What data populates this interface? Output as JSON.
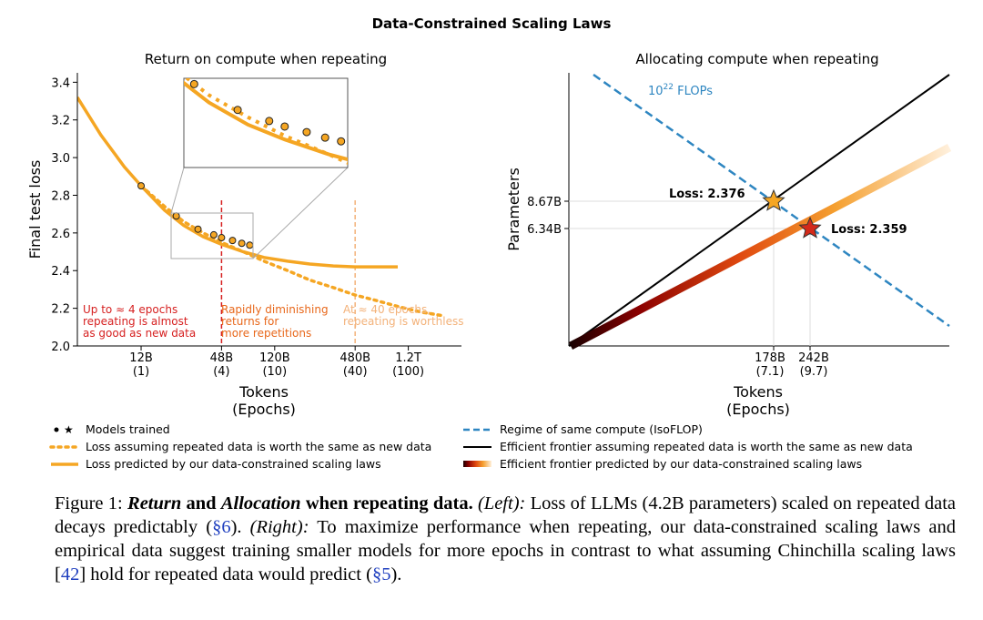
{
  "figure": {
    "suptitle": "Data-Constrained Scaling Laws"
  },
  "chart_data": [
    {
      "type": "line",
      "title": "Return on compute when repeating",
      "xlabel": "Tokens",
      "xlabel2": "(Epochs)",
      "ylabel": "Final test loss",
      "xscale": "log",
      "ylim": [
        2.0,
        3.45
      ],
      "xticks": [
        {
          "x": 12000000000.0,
          "label": "12B",
          "epochs": "(1)"
        },
        {
          "x": 48000000000.0,
          "label": "48B",
          "epochs": "(4)"
        },
        {
          "x": 120000000000.0,
          "label": "120B",
          "epochs": "(10)"
        },
        {
          "x": 480000000000.0,
          "label": "480B",
          "epochs": "(40)"
        },
        {
          "x": 1200000000000.0,
          "label": "1.2T",
          "epochs": "(100)"
        }
      ],
      "yticks": [
        "2.0",
        "2.2",
        "2.4",
        "2.6",
        "2.8",
        "3.0",
        "3.2",
        "3.4"
      ],
      "yticks_values": [
        2.0,
        2.2,
        2.4,
        2.6,
        2.8,
        3.0,
        3.2,
        3.4
      ],
      "series": [
        {
          "name": "Loss predicted by our data-constrained scaling laws",
          "style": "solid",
          "color": "#f5a623",
          "x": [
            4000000000.0,
            6000000000.0,
            9000000000.0,
            12000000000.0,
            18000000000.0,
            25000000000.0,
            35000000000.0,
            48000000000.0,
            70000000000.0,
            100000000000.0,
            150000000000.0,
            220000000000.0,
            330000000000.0,
            480000000000.0,
            700000000000.0,
            1000000000000.0
          ],
          "y": [
            3.32,
            3.12,
            2.95,
            2.85,
            2.72,
            2.64,
            2.58,
            2.54,
            2.5,
            2.47,
            2.45,
            2.435,
            2.425,
            2.42,
            2.42,
            2.42
          ]
        },
        {
          "name": "Loss assuming repeated data is worth the same as new data",
          "style": "dotted",
          "color": "#f5a623",
          "x": [
            12000000000.0,
            18000000000.0,
            25000000000.0,
            35000000000.0,
            48000000000.0,
            70000000000.0,
            100000000000.0,
            150000000000.0,
            220000000000.0,
            330000000000.0,
            480000000000.0,
            700000000000.0,
            1000000000000.0,
            1500000000000.0,
            2200000000000.0
          ],
          "y": [
            2.85,
            2.74,
            2.66,
            2.6,
            2.55,
            2.5,
            2.45,
            2.4,
            2.35,
            2.31,
            2.27,
            2.24,
            2.21,
            2.18,
            2.16
          ]
        }
      ],
      "models_trained": {
        "x": [
          12000000000.0,
          22000000000.0,
          32000000000.0,
          42000000000.0,
          48000000000.0,
          58000000000.0,
          68000000000.0,
          78000000000.0
        ],
        "y": [
          2.85,
          2.69,
          2.62,
          2.59,
          2.575,
          2.56,
          2.545,
          2.535
        ]
      },
      "vlines": [
        {
          "x": 48000000000.0,
          "color": "#d62020"
        },
        {
          "x": 480000000000.0,
          "color": "#f3b27a"
        }
      ],
      "annotations": [
        {
          "lines": [
            "Up to ≈ 4 epochs",
            "repeating is almost",
            "as good as new data"
          ],
          "color": "#d62020"
        },
        {
          "lines": [
            "Rapidly diminishing",
            "returns for",
            "more repetitions"
          ],
          "color": "#e8671a"
        },
        {
          "lines": [
            "At ≈ 40 epochs,",
            "repeating is worthless"
          ],
          "color": "#f3b27a"
        }
      ]
    },
    {
      "type": "line",
      "title": "Allocating compute when repeating",
      "xlabel": "Tokens",
      "xlabel2": "(Epochs)",
      "ylabel": "Parameters",
      "isoflop_label": "10",
      "isoflop_sup": "22",
      "isoflop_suffix": " FLOPs",
      "xticks": [
        {
          "label": "178B",
          "epochs": "(7.1)"
        },
        {
          "label": "242B",
          "epochs": "(9.7)"
        }
      ],
      "yticks": [
        {
          "label": "8.67B"
        },
        {
          "label": "6.34B"
        }
      ],
      "points": [
        {
          "label": "Loss: 2.376",
          "tokens": "178B",
          "params": "8.67B",
          "marker": "star",
          "color": "#f5a623"
        },
        {
          "label": "Loss: 2.359",
          "tokens": "242B",
          "params": "6.34B",
          "marker": "star",
          "color": "#d42a1a"
        }
      ],
      "series": [
        {
          "name": "Regime of same compute (IsoFLOP)",
          "style": "dashed",
          "color": "#2e86c1"
        },
        {
          "name": "Efficient frontier assuming repeated data is worth the same as new data",
          "style": "solid",
          "color": "#000000"
        },
        {
          "name": "Efficient frontier predicted by our data-constrained scaling laws",
          "style": "gradient",
          "color": "#e8671a"
        }
      ]
    }
  ],
  "legend": {
    "left": [
      {
        "label": "Models trained",
        "marker": "dot-star"
      },
      {
        "label": "Loss assuming repeated data is worth the same as new data",
        "marker": "dotted-orange"
      },
      {
        "label": "Loss predicted by our data-constrained scaling laws",
        "marker": "solid-orange"
      }
    ],
    "right": [
      {
        "label": "Regime of same compute (IsoFLOP)",
        "marker": "dashed-blue"
      },
      {
        "label": "Efficient frontier assuming repeated data is worth the same as new data",
        "marker": "solid-black"
      },
      {
        "label": "Efficient frontier predicted by our data-constrained scaling laws",
        "marker": "gradient"
      }
    ]
  },
  "caption": {
    "lead": "Figure 1: ",
    "bold1": "Return",
    "and1": " and ",
    "bold2": "Allocation",
    "bold3": " when repeating data.",
    "left_label": " (Left):",
    "text1": " Loss of LLMs (4.2B parameters) scaled on repeated data decays predictably (",
    "ref1": "§6",
    "text2": "). ",
    "right_label": "(Right):",
    "text3": " To maximize performance when repeating, our data-constrained scaling laws and empirical data suggest training smaller models for more epochs in contrast to what assuming Chinchilla scaling laws [",
    "ref2": "42",
    "text4": "] hold for repeated data would predict (",
    "ref3": "§5",
    "text5": ")."
  }
}
